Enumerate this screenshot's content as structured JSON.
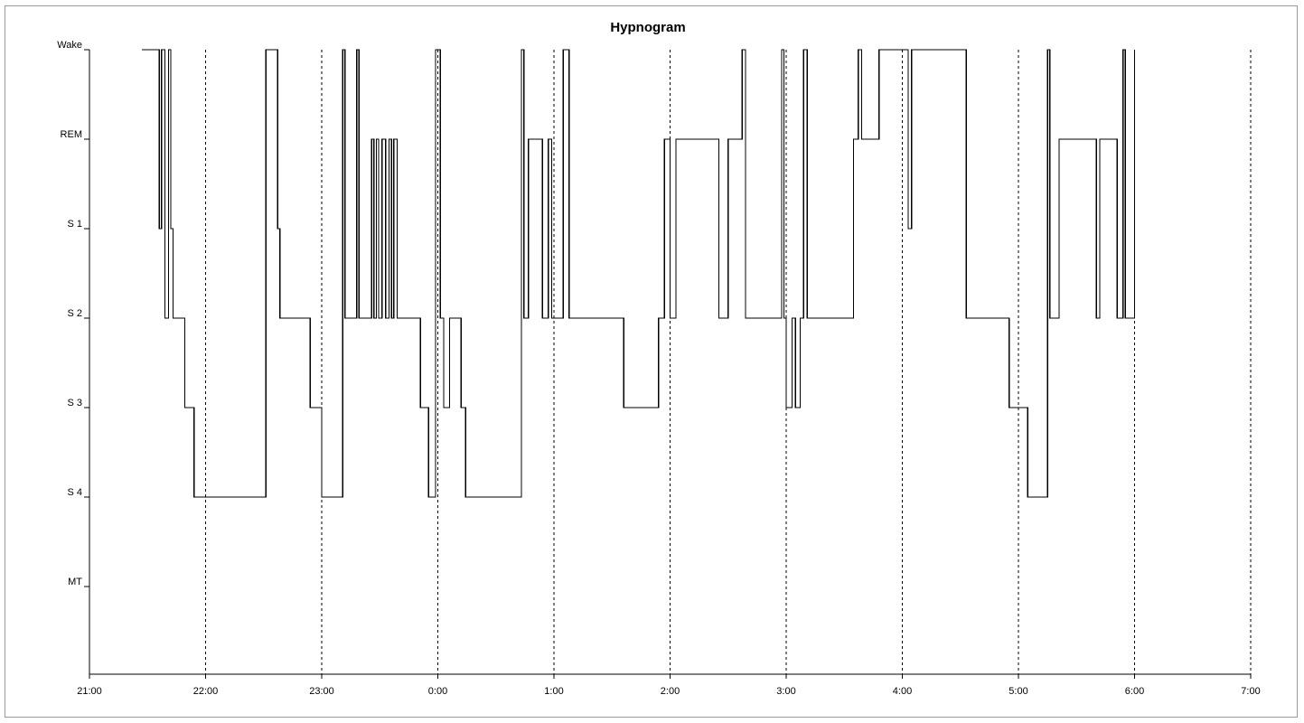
{
  "chart_data": {
    "type": "line",
    "title": "Hypnogram",
    "xlabel": "",
    "ylabel": "",
    "x_ticks": [
      "21:00",
      "22:00",
      "23:00",
      "0:00",
      "1:00",
      "2:00",
      "3:00",
      "4:00",
      "5:00",
      "6:00",
      "7:00"
    ],
    "x_range_hours": [
      21,
      31
    ],
    "y_levels": [
      "Wake",
      "REM",
      "S 1",
      "S 2",
      "S 3",
      "S 4",
      "MT"
    ],
    "grid": "vertical dashed lines at each hour tick (22:00 to 7:00)",
    "legend": "none",
    "series": [
      {
        "step": "post",
        "points": [
          [
            21.45,
            "Wake"
          ],
          [
            21.6,
            "S 1"
          ],
          [
            21.62,
            "Wake"
          ],
          [
            21.65,
            "S 2"
          ],
          [
            21.68,
            "Wake"
          ],
          [
            21.7,
            "S 1"
          ],
          [
            21.72,
            "S 2"
          ],
          [
            21.82,
            "S 3"
          ],
          [
            21.9,
            "S 4"
          ],
          [
            22.52,
            "Wake"
          ],
          [
            22.62,
            "S 1"
          ],
          [
            22.64,
            "S 2"
          ],
          [
            22.9,
            "S 3"
          ],
          [
            23.0,
            "S 4"
          ],
          [
            23.18,
            "Wake"
          ],
          [
            23.2,
            "S 2"
          ],
          [
            23.3,
            "Wake"
          ],
          [
            23.32,
            "S 2"
          ],
          [
            23.43,
            "REM"
          ],
          [
            23.45,
            "S 2"
          ],
          [
            23.47,
            "REM"
          ],
          [
            23.49,
            "S 2"
          ],
          [
            23.52,
            "REM"
          ],
          [
            23.55,
            "S 2"
          ],
          [
            23.58,
            "REM"
          ],
          [
            23.6,
            "S 2"
          ],
          [
            23.62,
            "REM"
          ],
          [
            23.65,
            "S 2"
          ],
          [
            23.85,
            "S 3"
          ],
          [
            23.92,
            "S 4"
          ],
          [
            23.98,
            "Wake"
          ],
          [
            24.02,
            "S 2"
          ],
          [
            24.05,
            "S 3"
          ],
          [
            24.1,
            "S 2"
          ],
          [
            24.2,
            "S 3"
          ],
          [
            24.24,
            "S 4"
          ],
          [
            24.72,
            "Wake"
          ],
          [
            24.74,
            "S 2"
          ],
          [
            24.78,
            "REM"
          ],
          [
            24.9,
            "S 2"
          ],
          [
            24.95,
            "REM"
          ],
          [
            24.98,
            "S 2"
          ],
          [
            25.08,
            "Wake"
          ],
          [
            25.13,
            "S 2"
          ],
          [
            25.3,
            "S 2"
          ],
          [
            25.6,
            "S 3"
          ],
          [
            25.9,
            "S 2"
          ],
          [
            25.95,
            "REM"
          ],
          [
            26.0,
            "S 2"
          ],
          [
            26.05,
            "REM"
          ],
          [
            26.1,
            "REM"
          ],
          [
            26.42,
            "S 2"
          ],
          [
            26.5,
            "REM"
          ],
          [
            26.62,
            "Wake"
          ],
          [
            26.65,
            "S 2"
          ],
          [
            26.96,
            "Wake"
          ],
          [
            26.98,
            "S 2"
          ],
          [
            27.0,
            "S 3"
          ],
          [
            27.05,
            "S 2"
          ],
          [
            27.08,
            "S 3"
          ],
          [
            27.12,
            "S 2"
          ],
          [
            27.15,
            "Wake"
          ],
          [
            27.18,
            "S 2"
          ],
          [
            27.58,
            "REM"
          ],
          [
            27.62,
            "Wake"
          ],
          [
            27.65,
            "REM"
          ],
          [
            27.8,
            "Wake"
          ],
          [
            28.05,
            "S 1"
          ],
          [
            28.08,
            "Wake"
          ],
          [
            28.55,
            "S 2"
          ],
          [
            28.92,
            "S 3"
          ],
          [
            29.08,
            "S 4"
          ],
          [
            29.25,
            "Wake"
          ],
          [
            29.27,
            "S 2"
          ],
          [
            29.35,
            "REM"
          ],
          [
            29.67,
            "S 2"
          ],
          [
            29.7,
            "REM"
          ],
          [
            29.85,
            "S 2"
          ],
          [
            29.9,
            "Wake"
          ],
          [
            29.92,
            "S 2"
          ],
          [
            30.0,
            "Wake"
          ],
          [
            30.0,
            "S 2"
          ]
        ]
      }
    ]
  }
}
